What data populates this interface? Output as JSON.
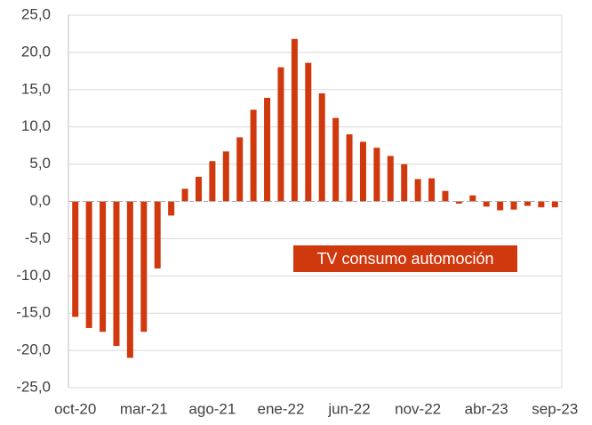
{
  "chart_data": {
    "type": "bar",
    "categories": [
      "oct-20",
      null,
      null,
      null,
      null,
      "mar-21",
      null,
      null,
      null,
      null,
      "ago-21",
      null,
      null,
      null,
      null,
      "ene-22",
      null,
      null,
      null,
      null,
      "jun-22",
      null,
      null,
      null,
      null,
      "nov-22",
      null,
      null,
      null,
      null,
      "abr-23",
      null,
      null,
      null,
      null,
      "sep-23"
    ],
    "series": [
      {
        "name": "TV consumo automoción",
        "color": "#d0390e",
        "values": [
          -15.5,
          -17,
          -17.5,
          -19.4,
          -21,
          -17.5,
          -9,
          -1.9,
          1.7,
          3.3,
          5.4,
          6.7,
          8.6,
          12.3,
          13.9,
          18,
          21.8,
          18.6,
          14.5,
          11.2,
          9,
          8,
          7.2,
          6.1,
          5,
          3,
          3.1,
          1.4,
          -0.3,
          0.8,
          -0.7,
          -1.2,
          -1.1,
          -0.6,
          -0.8,
          -0.8
        ]
      }
    ],
    "ylim": [
      -25,
      25
    ],
    "yticks": [
      {
        "value": -25,
        "label": "-25,0"
      },
      {
        "value": -20,
        "label": "-20,0"
      },
      {
        "value": -15,
        "label": "-15,0"
      },
      {
        "value": -10,
        "label": "-10,0"
      },
      {
        "value": -5,
        "label": "-5,0"
      },
      {
        "value": 0,
        "label": "0,0"
      },
      {
        "value": 5,
        "label": "5,0"
      },
      {
        "value": 10,
        "label": "10,0"
      },
      {
        "value": 15,
        "label": "15,0"
      },
      {
        "value": 20,
        "label": "20,0"
      },
      {
        "value": 25,
        "label": "25,0"
      }
    ],
    "grid": true
  }
}
